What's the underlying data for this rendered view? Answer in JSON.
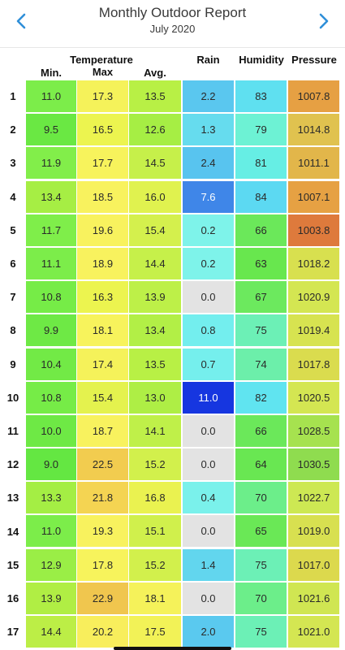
{
  "header": {
    "title": "Monthly Outdoor Report",
    "subtitle": "July 2020",
    "prev_icon": "chevron-left-icon",
    "next_icon": "chevron-right-icon",
    "accent": "#2f8fd8"
  },
  "columns": {
    "group_temperature": "Temperature",
    "min": "Min.",
    "max": "Max",
    "avg": "Avg.",
    "rain": "Rain",
    "humidity": "Humidity",
    "pressure": "Pressure"
  },
  "rows": [
    {
      "day": "1",
      "min": "11.0",
      "max": "17.3",
      "avg": "13.5",
      "rain": "2.2",
      "hum": "83",
      "pres": "1007.8",
      "colors": {
        "min": "#7ced4a",
        "max": "#f5f25a",
        "avg": "#b8f045",
        "rain": "#5ac7ef",
        "hum": "#5fe0f0",
        "pres": "#e6a043"
      }
    },
    {
      "day": "2",
      "min": "9.5",
      "max": "16.5",
      "avg": "12.6",
      "rain": "1.3",
      "hum": "79",
      "pres": "1014.8",
      "colors": {
        "min": "#6ae843",
        "max": "#ecf44f",
        "avg": "#a6ee44",
        "rain": "#66dcee",
        "hum": "#6df2d4",
        "pres": "#e0c24f"
      }
    },
    {
      "day": "3",
      "min": "11.9",
      "max": "17.7",
      "avg": "14.5",
      "rain": "2.4",
      "hum": "81",
      "pres": "1011.1",
      "colors": {
        "min": "#82ee4a",
        "max": "#f7f35c",
        "avg": "#c6f04a",
        "rain": "#58c4ef",
        "hum": "#66eee4",
        "pres": "#e2b64a"
      }
    },
    {
      "day": "4",
      "min": "13.4",
      "max": "18.5",
      "avg": "16.0",
      "rain": "7.6",
      "hum": "84",
      "pres": "1007.1",
      "colors": {
        "min": "#a6ee44",
        "max": "#f8f25e",
        "avg": "#e0f24f",
        "rain": "#3f86e8",
        "hum": "#5cd9f2",
        "pres": "#e6a143"
      }
    },
    {
      "day": "5",
      "min": "11.7",
      "max": "19.6",
      "avg": "15.4",
      "rain": "0.2",
      "hum": "66",
      "pres": "1003.8",
      "colors": {
        "min": "#7fee4a",
        "max": "#f8f25e",
        "avg": "#d4f04d",
        "rain": "#7ef3ea",
        "hum": "#6be85a",
        "pres": "#de7a3c"
      }
    },
    {
      "day": "6",
      "min": "11.1",
      "max": "18.9",
      "avg": "14.4",
      "rain": "0.2",
      "hum": "63",
      "pres": "1018.2",
      "colors": {
        "min": "#7ced4a",
        "max": "#f8f25e",
        "avg": "#c6f04a",
        "rain": "#7ef3ea",
        "hum": "#68e74e",
        "pres": "#d8e04f"
      }
    },
    {
      "day": "7",
      "min": "10.8",
      "max": "16.3",
      "avg": "13.9",
      "rain": "0.0",
      "hum": "67",
      "pres": "1020.9",
      "colors": {
        "min": "#76ec47",
        "max": "#ecf44f",
        "avg": "#bdf048",
        "rain": "#e3e3e3",
        "hum": "#6ce95e",
        "pres": "#d4e652"
      }
    },
    {
      "day": "8",
      "min": "9.9",
      "max": "18.1",
      "avg": "13.4",
      "rain": "0.8",
      "hum": "75",
      "pres": "1019.4",
      "colors": {
        "min": "#6ee945",
        "max": "#f7f35c",
        "avg": "#b2ef46",
        "rain": "#73eeee",
        "hum": "#6cf0b6",
        "pres": "#d7e350"
      }
    },
    {
      "day": "9",
      "min": "10.4",
      "max": "17.4",
      "avg": "13.5",
      "rain": "0.7",
      "hum": "74",
      "pres": "1017.8",
      "colors": {
        "min": "#72ea46",
        "max": "#f5f25a",
        "avg": "#b8f045",
        "rain": "#75efed",
        "hum": "#6cefaa",
        "pres": "#dadc4e"
      }
    },
    {
      "day": "10",
      "min": "10.8",
      "max": "15.4",
      "avg": "13.0",
      "rain": "11.0",
      "hum": "82",
      "pres": "1020.5",
      "colors": {
        "min": "#76ec47",
        "max": "#e4f24e",
        "avg": "#aeee45",
        "rain": "#1636e0",
        "hum": "#60e4f0",
        "pres": "#d4e652"
      }
    },
    {
      "day": "11",
      "min": "10.0",
      "max": "18.7",
      "avg": "14.1",
      "rain": "0.0",
      "hum": "66",
      "pres": "1028.5",
      "colors": {
        "min": "#6ee945",
        "max": "#f8f25e",
        "avg": "#bff049",
        "rain": "#e3e3e3",
        "hum": "#6be85a",
        "pres": "#a6e24f"
      }
    },
    {
      "day": "12",
      "min": "9.0",
      "max": "22.5",
      "avg": "15.2",
      "rain": "0.0",
      "hum": "64",
      "pres": "1030.5",
      "colors": {
        "min": "#64e742",
        "max": "#f2cc4f",
        "avg": "#d2f04c",
        "rain": "#e3e3e3",
        "hum": "#69e752",
        "pres": "#8fdc4f"
      }
    },
    {
      "day": "13",
      "min": "13.3",
      "max": "21.8",
      "avg": "16.8",
      "rain": "0.4",
      "hum": "70",
      "pres": "1022.7",
      "colors": {
        "min": "#a4ee44",
        "max": "#f4d452",
        "avg": "#eaf250",
        "rain": "#7af1eb",
        "hum": "#6cee8a",
        "pres": "#cde853"
      }
    },
    {
      "day": "14",
      "min": "11.0",
      "max": "19.3",
      "avg": "15.1",
      "rain": "0.0",
      "hum": "65",
      "pres": "1019.0",
      "colors": {
        "min": "#7ced4a",
        "max": "#f8f25e",
        "avg": "#d0f04c",
        "rain": "#e3e3e3",
        "hum": "#6ae856",
        "pres": "#d8e050"
      }
    },
    {
      "day": "15",
      "min": "12.9",
      "max": "17.8",
      "avg": "15.2",
      "rain": "1.4",
      "hum": "75",
      "pres": "1017.0",
      "colors": {
        "min": "#9aee46",
        "max": "#f7f35c",
        "avg": "#d2f04c",
        "rain": "#62d6ee",
        "hum": "#6cf0b6",
        "pres": "#dcd94d"
      }
    },
    {
      "day": "16",
      "min": "13.9",
      "max": "22.9",
      "avg": "18.1",
      "rain": "0.0",
      "hum": "70",
      "pres": "1021.6",
      "colors": {
        "min": "#b0ee44",
        "max": "#f0c64e",
        "avg": "#f5f25a",
        "rain": "#e3e3e3",
        "hum": "#6cee8a",
        "pres": "#d0e652"
      }
    },
    {
      "day": "17",
      "min": "14.4",
      "max": "20.2",
      "avg": "17.5",
      "rain": "2.0",
      "hum": "75",
      "pres": "1021.0",
      "colors": {
        "min": "#bcee46",
        "max": "#f8ee5c",
        "avg": "#f2f257",
        "rain": "#5ac9ef",
        "hum": "#6cf0b6",
        "pres": "#d4e652"
      }
    }
  ]
}
